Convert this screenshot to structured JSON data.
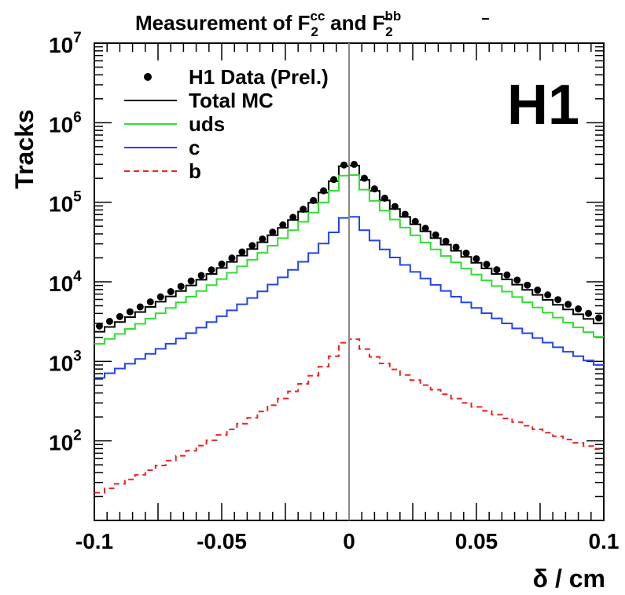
{
  "chart_data": {
    "type": "line",
    "title": {
      "prefix": "Measurement of F",
      "sup1": "c",
      "sup1bar": "c",
      "sub": "2",
      "middle": " and F",
      "sup2": "b",
      "sup2bar": "b",
      "sub2": "2"
    },
    "xlabel": "δ / cm",
    "ylabel": "Tracks",
    "xlim": [
      -0.1,
      0.1
    ],
    "ylim": [
      10,
      10000000
    ],
    "yscale": "log",
    "logo": "H1",
    "x_ticks": [
      {
        "value": -0.1,
        "label": "-0.1"
      },
      {
        "value": -0.05,
        "label": "-0.05"
      },
      {
        "value": 0,
        "label": "0"
      },
      {
        "value": 0.05,
        "label": "0.05"
      },
      {
        "value": 0.1,
        "label": "0.1"
      }
    ],
    "y_ticks": [
      {
        "value": 100,
        "base": "10",
        "exp": "2"
      },
      {
        "value": 1000,
        "base": "10",
        "exp": "3"
      },
      {
        "value": 10000,
        "base": "10",
        "exp": "4"
      },
      {
        "value": 100000,
        "base": "10",
        "exp": "5"
      },
      {
        "value": 1000000,
        "base": "10",
        "exp": "6"
      },
      {
        "value": 10000000,
        "base": "10",
        "exp": "7"
      }
    ],
    "legend": {
      "position": "top-left",
      "entries": [
        {
          "label": "H1 Data (Prel.)",
          "style": "marker",
          "color": "#000000"
        },
        {
          "label": "Total MC",
          "style": "solid",
          "color": "#000000"
        },
        {
          "label": "uds",
          "style": "solid",
          "color": "#33dd33"
        },
        {
          "label": "c",
          "style": "solid",
          "color": "#2244ee"
        },
        {
          "label": "b",
          "style": "dashed",
          "color": "#ee2222"
        }
      ]
    },
    "bins": {
      "min": -0.1,
      "max": 0.1,
      "count": 50
    },
    "series": [
      {
        "name": "H1 Data (Prel.)",
        "type": "points",
        "color": "#000000",
        "peak": 440000,
        "edge_left": 2600,
        "edge_right": 3300
      },
      {
        "name": "Total MC",
        "type": "step",
        "color": "#000000",
        "peak": 430000,
        "edge_left": 2200,
        "edge_right": 2800
      },
      {
        "name": "uds",
        "type": "step",
        "color": "#33dd33",
        "peak": 330000,
        "edge_left": 1550,
        "edge_right": 1900
      },
      {
        "name": "c",
        "type": "step",
        "color": "#2244ee",
        "peak": 95000,
        "edge_left": 580,
        "edge_right": 850
      },
      {
        "name": "b",
        "type": "step-dashed",
        "color": "#ee2222",
        "peak": 2500,
        "edge_left": 21,
        "edge_right": 75
      }
    ],
    "zero_line": true
  }
}
